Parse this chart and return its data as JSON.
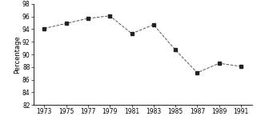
{
  "x": [
    1973,
    1975,
    1977,
    1979,
    1981,
    1983,
    1985,
    1987,
    1989,
    1991
  ],
  "y": [
    94.1,
    94.9,
    95.7,
    96.1,
    93.3,
    94.7,
    90.7,
    87.1,
    88.6,
    88.1
  ],
  "xlim": [
    1972,
    1992
  ],
  "ylim": [
    82,
    98
  ],
  "xticks": [
    1973,
    1975,
    1977,
    1979,
    1981,
    1983,
    1985,
    1987,
    1989,
    1991
  ],
  "yticks": [
    82,
    84,
    86,
    88,
    90,
    92,
    94,
    96,
    98
  ],
  "ylabel": "Percentage",
  "line_color": "#555555",
  "marker": "s",
  "marker_color": "#222222",
  "marker_size": 3.0,
  "background_color": "#ffffff",
  "tick_label_fontsize": 5.5,
  "ylabel_fontsize": 6.0
}
